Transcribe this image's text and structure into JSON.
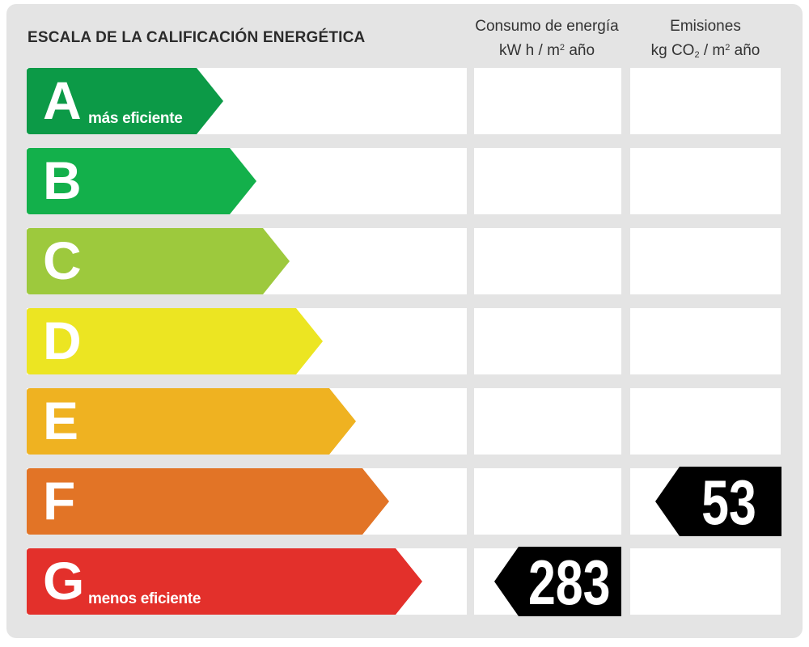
{
  "title": "ESCALA DE LA CALIFICACIÓN ENERGÉTICA",
  "columns": {
    "energy": {
      "line1": "Consumo de energía",
      "line2_main": "kW h  / m",
      "line2_sup": "2",
      "line2_tail": " año"
    },
    "emissions": {
      "line1": "Emisiones",
      "line2_a": "kg CO",
      "line2_sub": "2",
      "line2_b": "  / m",
      "line2_sup": "2",
      "line2_tail": " año"
    }
  },
  "ratings": [
    {
      "letter": "A",
      "sub": "más eficiente",
      "color": "#0c9a47"
    },
    {
      "letter": "B",
      "sub": "",
      "color": "#13b04b"
    },
    {
      "letter": "C",
      "sub": "",
      "color": "#9dc93d"
    },
    {
      "letter": "D",
      "sub": "",
      "color": "#ece522"
    },
    {
      "letter": "E",
      "sub": "",
      "color": "#efb221"
    },
    {
      "letter": "F",
      "sub": "",
      "color": "#e27426"
    },
    {
      "letter": "G",
      "sub": "menos eficiente",
      "color": "#e3302b"
    }
  ],
  "energy_consumption": {
    "value": "283",
    "rating": "G"
  },
  "emissions": {
    "value": "53",
    "rating": "F"
  },
  "tag_color": "#000000"
}
